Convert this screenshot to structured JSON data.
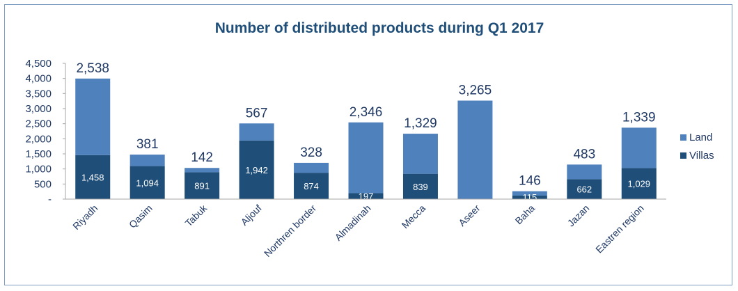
{
  "chart_data": {
    "type": "bar",
    "stacked": true,
    "title": "Number of distributed products during Q1 2017",
    "xlabel": "",
    "ylabel": "",
    "ylim": [
      0,
      4500
    ],
    "y_ticks": [
      {
        "value": 0,
        "label": "-"
      },
      {
        "value": 500,
        "label": "500"
      },
      {
        "value": 1000,
        "label": "1,000"
      },
      {
        "value": 1500,
        "label": "1,500"
      },
      {
        "value": 2000,
        "label": "2,000"
      },
      {
        "value": 2500,
        "label": "2,500"
      },
      {
        "value": 3000,
        "label": "3,000"
      },
      {
        "value": 3500,
        "label": "3,500"
      },
      {
        "value": 4000,
        "label": "4,000"
      },
      {
        "value": 4500,
        "label": "4,500"
      }
    ],
    "categories": [
      "Riyadh",
      "Qasim",
      "Tabuk",
      "Aljouf",
      "Northren border",
      "Almadinah",
      "Mecca",
      "Aseer",
      "Baha",
      "Jazan",
      "Eastren region"
    ],
    "series": [
      {
        "name": "Villas",
        "color": "#1f4e79",
        "values": [
          1458,
          1094,
          891,
          1942,
          874,
          197,
          839,
          0,
          115,
          662,
          1029
        ],
        "labels": [
          "1,458",
          "1,094",
          "891",
          "1,942",
          "874",
          "197",
          "839",
          "",
          "115",
          "662",
          "1,029"
        ]
      },
      {
        "name": "Land",
        "color": "#4f81bd",
        "values": [
          2538,
          381,
          142,
          567,
          328,
          2346,
          1329,
          3265,
          146,
          483,
          1339
        ],
        "labels": [
          "2,538",
          "381",
          "142",
          "567",
          "328",
          "2,346",
          "1,329",
          "3,265",
          "146",
          "483",
          "1,339"
        ]
      }
    ],
    "legend": {
      "position": "right",
      "entries": [
        "Land",
        "Villas"
      ]
    },
    "grid": false
  }
}
